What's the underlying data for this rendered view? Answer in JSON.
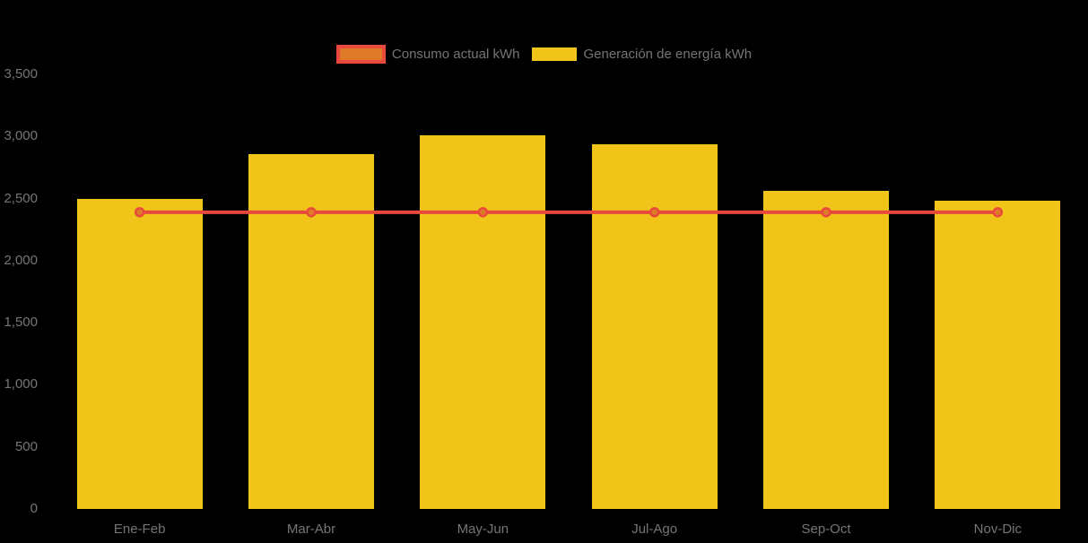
{
  "background_color": "#000000",
  "legend": {
    "position": "top-center",
    "text_color": "#757575",
    "items": [
      {
        "label": "Consumo actual kWh",
        "marker": "line-swatch",
        "fill": "#df7a28",
        "border": "#e8493c"
      },
      {
        "label": "Generación de energía kWh",
        "marker": "bar-swatch",
        "fill": "#f0c419",
        "border": "#f0c419"
      }
    ]
  },
  "chart_data": {
    "type": "bar",
    "title": "",
    "xlabel": "",
    "ylabel": "",
    "categories": [
      "Ene-Feb",
      "Mar-Abr",
      "May-Jun",
      "Jul-Ago",
      "Sep-Oct",
      "Nov-Dic"
    ],
    "series": [
      {
        "name": "Generación de energía kWh",
        "type": "bar",
        "color": "#f0c419",
        "values": [
          2500,
          2860,
          3010,
          2940,
          2560,
          2480
        ]
      },
      {
        "name": "Consumo actual kWh",
        "type": "line",
        "color": "#e8493c",
        "marker_fill": "#df7a28",
        "values": [
          2390,
          2390,
          2390,
          2390,
          2390,
          2390
        ]
      }
    ],
    "ylim": [
      0,
      3500
    ],
    "ytick_step": 500,
    "yticks": [
      {
        "value": 0,
        "label": "0"
      },
      {
        "value": 500,
        "label": "500"
      },
      {
        "value": 1000,
        "label": "1,000"
      },
      {
        "value": 1500,
        "label": "1,500"
      },
      {
        "value": 2000,
        "label": "2,000"
      },
      {
        "value": 2500,
        "label": "2,500"
      },
      {
        "value": 3000,
        "label": "3,000"
      },
      {
        "value": 3500,
        "label": "3,500"
      }
    ],
    "grid": false,
    "legend_position": "top-center",
    "axis_text_color": "#757575",
    "background": "#000000"
  }
}
